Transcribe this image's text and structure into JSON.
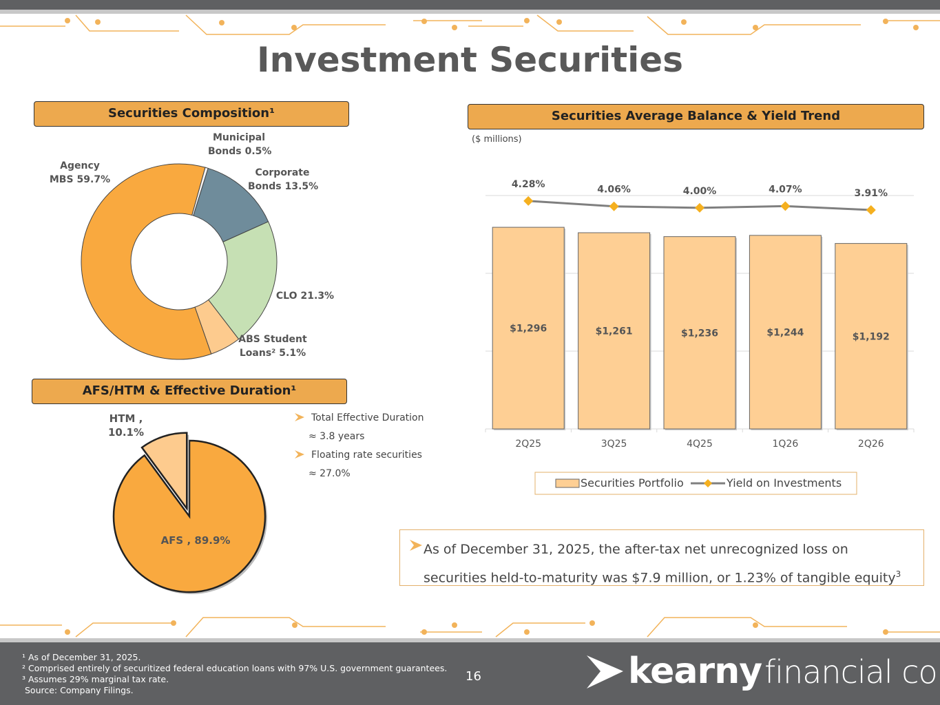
{
  "title": "Investment Securities",
  "chart_data": [
    {
      "type": "donut",
      "title": "Securities Composition¹",
      "categories": [
        "Municipal Bonds",
        "Corporate Bonds",
        "CLO",
        "ABS Student Loans²",
        "Agency MBS"
      ],
      "values": [
        0.5,
        13.5,
        21.3,
        5.1,
        59.7
      ],
      "value_labels": [
        "0.5%",
        "13.5%",
        "21.3%",
        "5.1%",
        "59.7%"
      ],
      "colors": [
        "#f4f4f4",
        "#6f8c9b",
        "#c6e0b4",
        "#fdcb8e",
        "#f9a93f"
      ]
    },
    {
      "type": "pie",
      "title": "AFS/HTM & Effective Duration¹",
      "values": [
        89.9,
        10.1
      ],
      "value_labels": [
        "AFS , 89.9%",
        "HTM , 10.1%"
      ],
      "colors": [
        "#f9a93f",
        "#fdcb8e"
      ],
      "exploded": [
        false,
        true
      ]
    },
    {
      "type": "bar",
      "title": "Securities Average Balance & Yield Trend",
      "subtitle": "($ millions)",
      "categories": [
        "2Q25",
        "3Q25",
        "4Q25",
        "1Q26",
        "2Q26"
      ],
      "series": [
        {
          "name": "Securities Portfolio",
          "type": "bar",
          "color": "#fecf94",
          "values": [
            1296,
            1261,
            1236,
            1244,
            1192
          ],
          "value_labels": [
            "$1,296",
            "$1,261",
            "$1,236",
            "$1,244",
            "$1,192"
          ]
        },
        {
          "name": "Yield on Investments",
          "type": "line",
          "axis": "y2",
          "color": "#7f7f7f",
          "marker_color": "#f5b01f",
          "values": [
            4.28,
            4.06,
            4.0,
            4.07,
            3.91
          ],
          "value_labels": [
            "4.28%",
            "4.06%",
            "4.00%",
            "4.07%",
            "3.91%"
          ]
        }
      ],
      "ylim": [
        0,
        1500
      ],
      "yticks": [
        0,
        500,
        1000,
        1500
      ],
      "y2lim": [
        -5,
        4.5
      ],
      "grid": true,
      "legend": "bottom"
    }
  ],
  "bullets": [
    "Total Effective Duration ≈ 3.8 years",
    "Floating rate securities ≈ 27.0%"
  ],
  "note": {
    "text": "As of December 31, 2025, the after-tax net unrecognized loss on securities held-to-maturity was $7.9 million, or 1.23% of tangible equity",
    "superscript": "3"
  },
  "footer": {
    "footnotes": [
      "¹ As of December 31, 2025.",
      "² Comprised entirely of securitized federal education loans with 97% U.S. government guarantees.",
      "³ Assumes 29% marginal tax rate.",
      "Source: Company Filings."
    ],
    "page_number": "16",
    "logo": {
      "name": "kearny",
      "suffix": "financial corp."
    }
  }
}
